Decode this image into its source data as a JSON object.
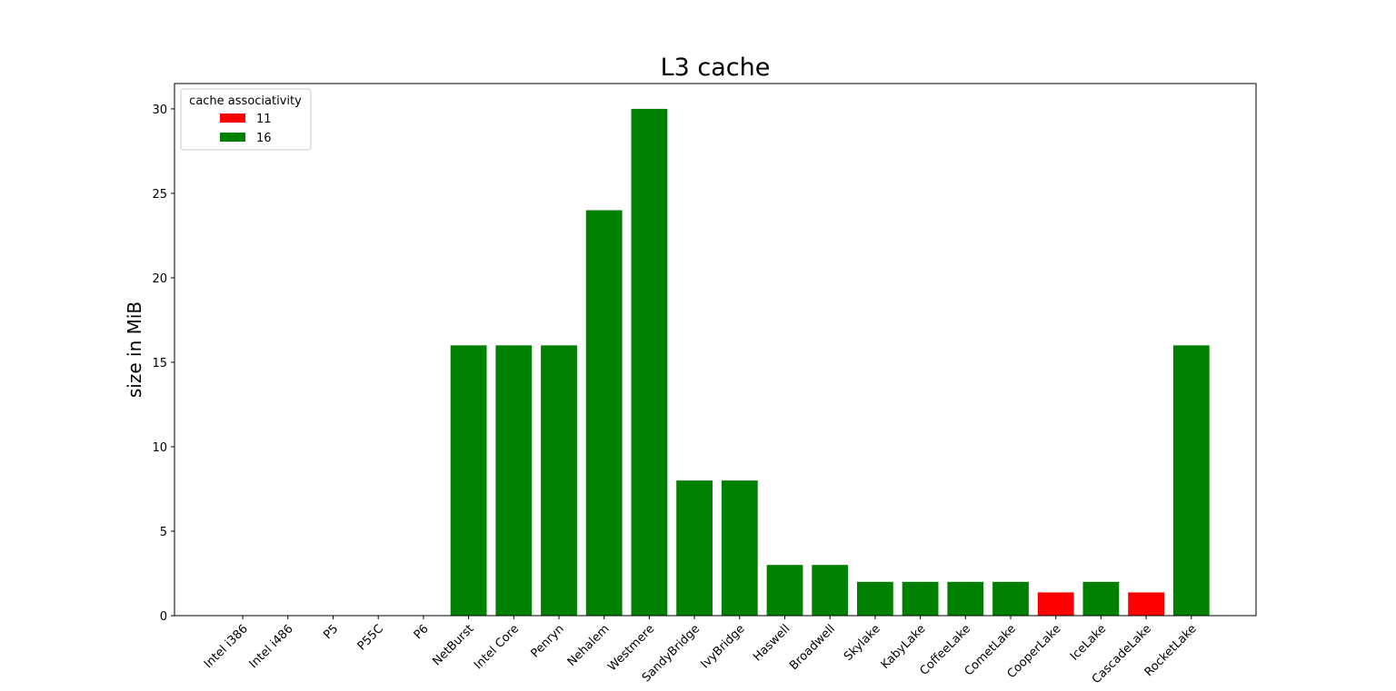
{
  "chart_data": {
    "type": "bar",
    "title": "L3 cache",
    "xlabel": "",
    "ylabel": "size in MiB",
    "ylim": [
      0,
      31.5
    ],
    "yticks": [
      0,
      5,
      10,
      15,
      20,
      25,
      30
    ],
    "categories": [
      "Intel i386",
      "Intel i486",
      "P5",
      "P55C",
      "P6",
      "NetBurst",
      "Intel Core",
      "Penryn",
      "Nehalem",
      "Westmere",
      "SandyBridge",
      "IvyBridge",
      "Haswell",
      "Broadwell",
      "Skylake",
      "KabyLake",
      "CoffeeLake",
      "CometLake",
      "CooperLake",
      "IceLake",
      "CascadeLake",
      "RocketLake"
    ],
    "values": [
      0,
      0,
      0,
      0,
      0,
      16,
      16,
      16,
      24,
      30,
      8,
      8,
      3,
      3,
      2,
      2,
      2,
      2,
      1.375,
      2,
      1.375,
      16
    ],
    "associativity": [
      null,
      null,
      null,
      null,
      null,
      16,
      16,
      16,
      16,
      16,
      16,
      16,
      16,
      16,
      16,
      16,
      16,
      16,
      11,
      16,
      11,
      16
    ],
    "legend": {
      "title": "cache associativity",
      "position": "top-left",
      "entries": [
        {
          "label": "11",
          "color": "#ff0000"
        },
        {
          "label": "16",
          "color": "#008000"
        }
      ]
    }
  }
}
